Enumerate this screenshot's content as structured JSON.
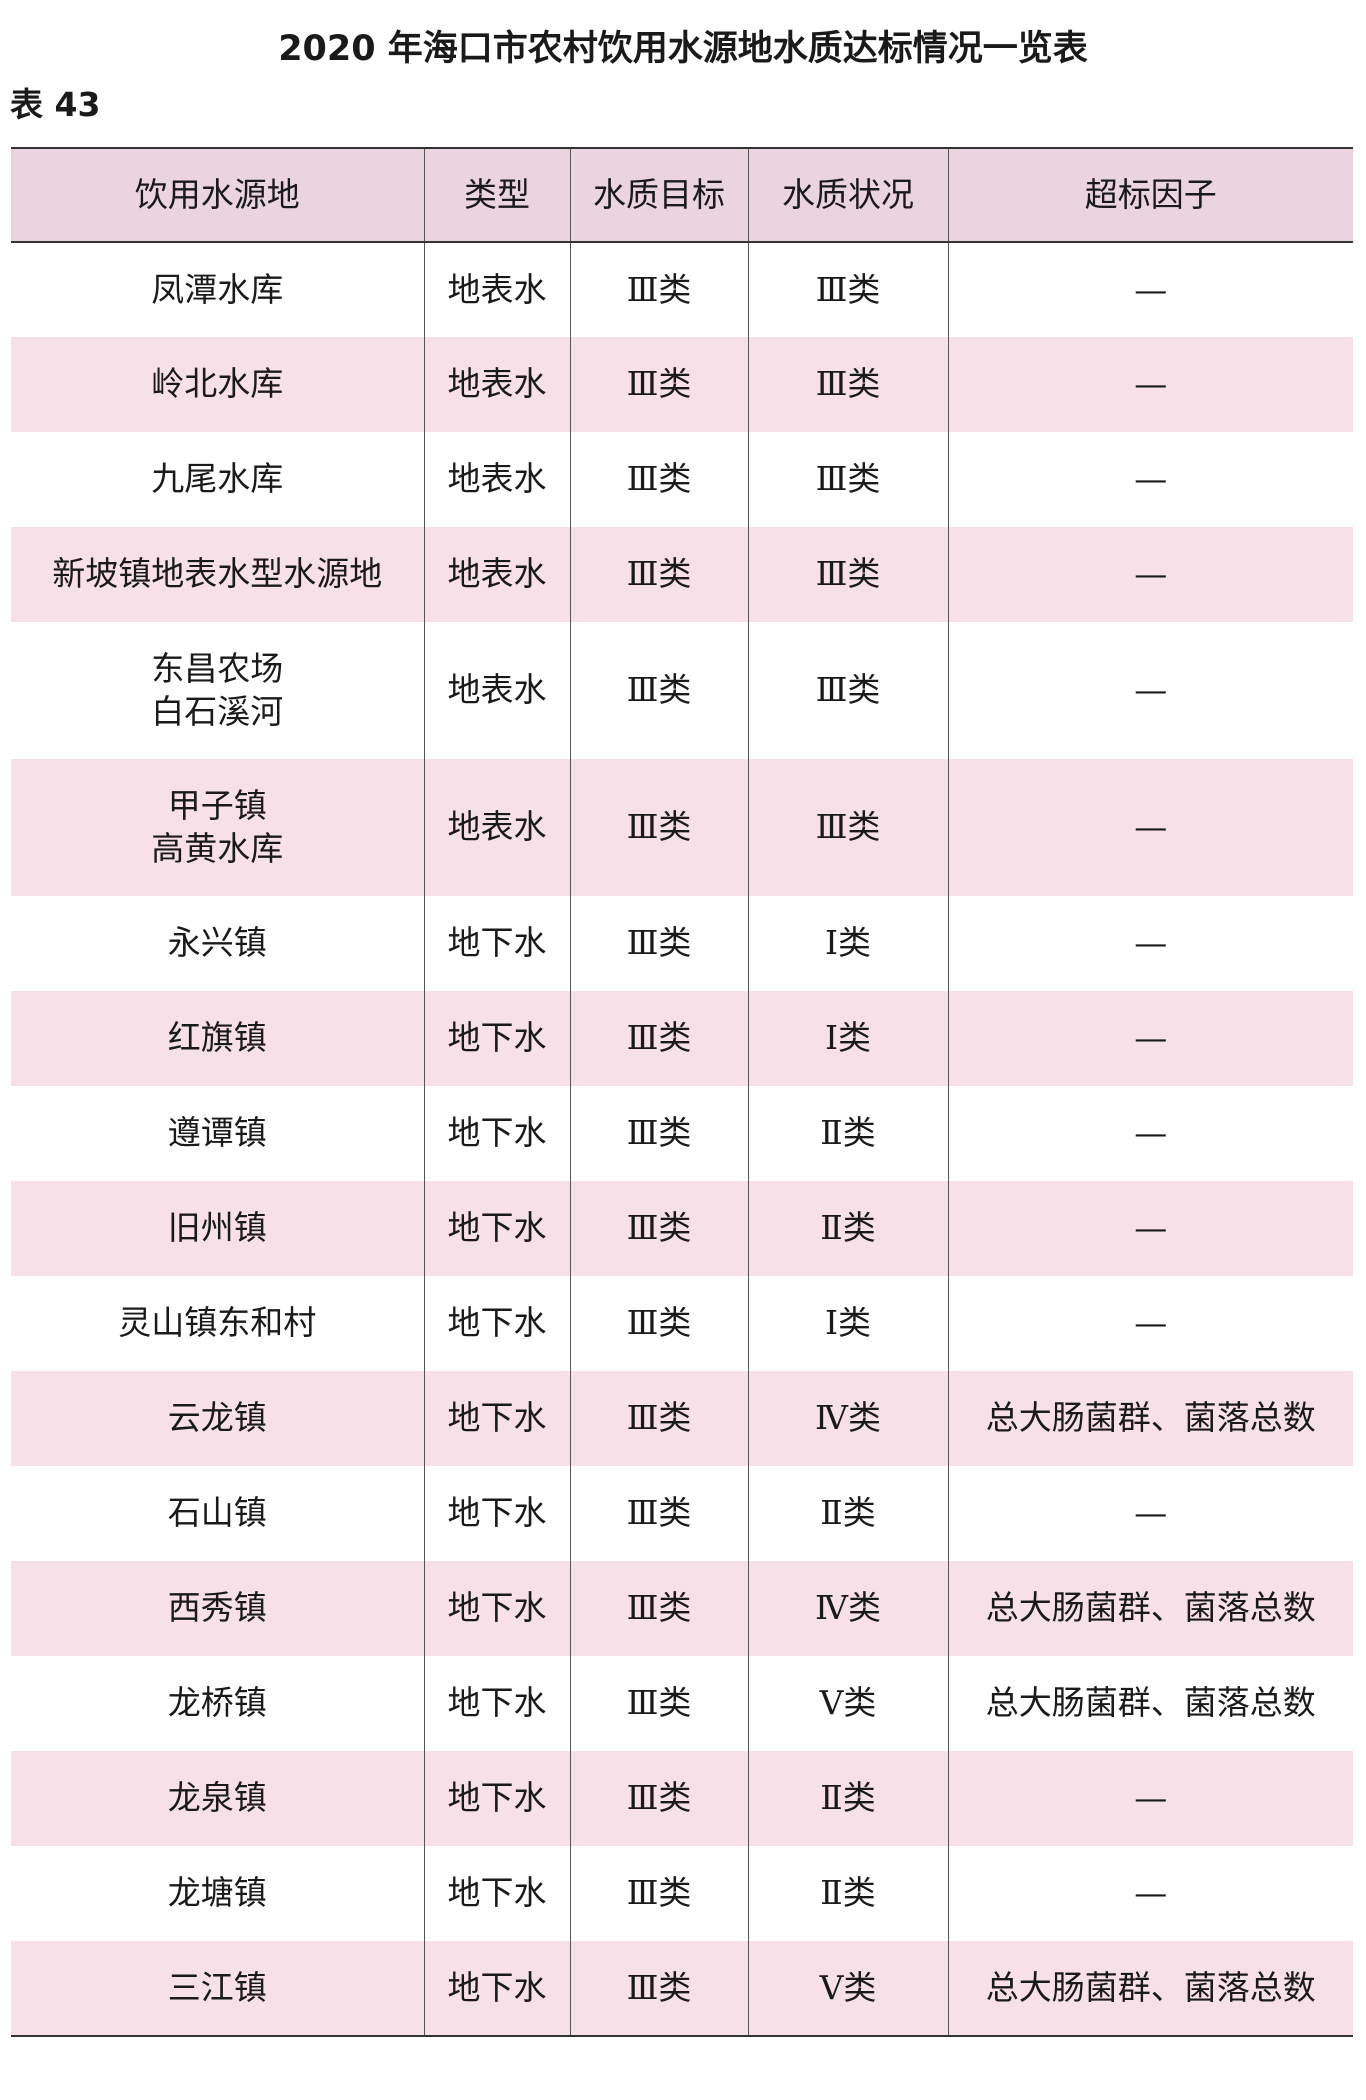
{
  "title": "2020 年海口市农村饮用水源地水质达标情况一览表",
  "table_label": "表 43",
  "colors": {
    "header_bg": "#ead4e0",
    "stripe_bg": "#f7e0e8"
  },
  "columns": [
    "饮用水源地",
    "类型",
    "水质目标",
    "水质状况",
    "超标因子"
  ],
  "rows": [
    {
      "source": "凤潭水库",
      "type": "地表水",
      "target": "Ⅲ类",
      "status": "Ⅲ类",
      "factor": "—"
    },
    {
      "source": "岭北水库",
      "type": "地表水",
      "target": "Ⅲ类",
      "status": "Ⅲ类",
      "factor": "—"
    },
    {
      "source": "九尾水库",
      "type": "地表水",
      "target": "Ⅲ类",
      "status": "Ⅲ类",
      "factor": "—"
    },
    {
      "source": "新坡镇地表水型水源地",
      "type": "地表水",
      "target": "Ⅲ类",
      "status": "Ⅲ类",
      "factor": "—"
    },
    {
      "source": "东昌农场\n白石溪河",
      "type": "地表水",
      "target": "Ⅲ类",
      "status": "Ⅲ类",
      "factor": "—"
    },
    {
      "source": "甲子镇\n高黄水库",
      "type": "地表水",
      "target": "Ⅲ类",
      "status": "Ⅲ类",
      "factor": "—"
    },
    {
      "source": "永兴镇",
      "type": "地下水",
      "target": "Ⅲ类",
      "status": "Ⅰ类",
      "factor": "—"
    },
    {
      "source": "红旗镇",
      "type": "地下水",
      "target": "Ⅲ类",
      "status": "Ⅰ类",
      "factor": "—"
    },
    {
      "source": "遵谭镇",
      "type": "地下水",
      "target": "Ⅲ类",
      "status": "Ⅱ类",
      "factor": "—"
    },
    {
      "source": "旧州镇",
      "type": "地下水",
      "target": "Ⅲ类",
      "status": "Ⅱ类",
      "factor": "—"
    },
    {
      "source": "灵山镇东和村",
      "type": "地下水",
      "target": "Ⅲ类",
      "status": "Ⅰ类",
      "factor": "—"
    },
    {
      "source": "云龙镇",
      "type": "地下水",
      "target": "Ⅲ类",
      "status": "Ⅳ类",
      "factor": "总大肠菌群、菌落总数"
    },
    {
      "source": "石山镇",
      "type": "地下水",
      "target": "Ⅲ类",
      "status": "Ⅱ类",
      "factor": "—"
    },
    {
      "source": "西秀镇",
      "type": "地下水",
      "target": "Ⅲ类",
      "status": "Ⅳ类",
      "factor": "总大肠菌群、菌落总数"
    },
    {
      "source": "龙桥镇",
      "type": "地下水",
      "target": "Ⅲ类",
      "status": "Ⅴ类",
      "factor": "总大肠菌群、菌落总数"
    },
    {
      "source": "龙泉镇",
      "type": "地下水",
      "target": "Ⅲ类",
      "status": "Ⅱ类",
      "factor": "—"
    },
    {
      "source": "龙塘镇",
      "type": "地下水",
      "target": "Ⅲ类",
      "status": "Ⅱ类",
      "factor": "—"
    },
    {
      "source": "三江镇",
      "type": "地下水",
      "target": "Ⅲ类",
      "status": "Ⅴ类",
      "factor": "总大肠菌群、菌落总数"
    }
  ]
}
